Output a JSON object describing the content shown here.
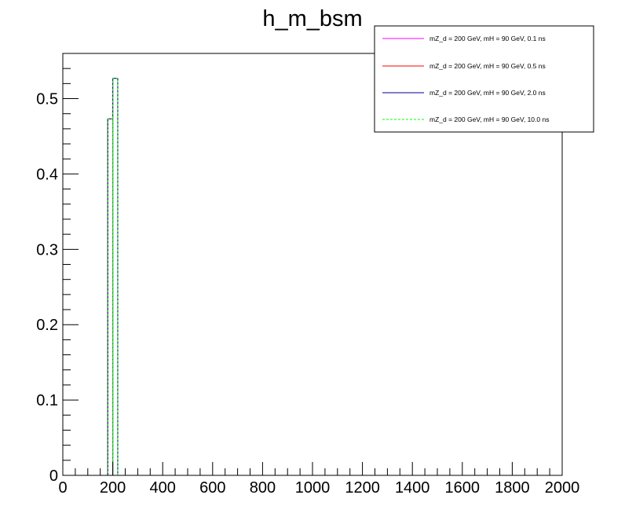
{
  "chart_data": {
    "type": "histogram",
    "title": "h_m_bsm",
    "xlabel": "",
    "ylabel": "",
    "xlim": [
      0,
      2000
    ],
    "ylim": [
      0,
      0.56
    ],
    "x_ticks": [
      0,
      200,
      400,
      600,
      800,
      1000,
      1200,
      1400,
      1600,
      1800,
      2000
    ],
    "y_ticks": [
      0,
      0.1,
      0.2,
      0.3,
      0.4,
      0.5
    ],
    "x_tick_labels": [
      "0",
      "200",
      "400",
      "600",
      "800",
      "1000",
      "1200",
      "1400",
      "1600",
      "1800",
      "2000"
    ],
    "y_tick_labels": [
      "0",
      "0.1",
      "0.2",
      "0.3",
      "0.4",
      "0.5"
    ],
    "bin_width": 20,
    "legend_position": "top-right",
    "grid": false,
    "series": [
      {
        "name": "mZ_d = 200 GeV, mH = 90 GeV, 0.1 ns",
        "color": "#ff00ff",
        "style": "solid",
        "bins": [
          {
            "x_low": 180,
            "x_high": 200,
            "value": 0.473
          },
          {
            "x_low": 200,
            "x_high": 220,
            "value": 0.527
          }
        ]
      },
      {
        "name": "mZ_d = 200 GeV, mH = 90 GeV, 0.5 ns",
        "color": "#ff0000",
        "style": "solid",
        "bins": [
          {
            "x_low": 180,
            "x_high": 200,
            "value": 0.473
          },
          {
            "x_low": 200,
            "x_high": 220,
            "value": 0.527
          }
        ]
      },
      {
        "name": "mZ_d = 200 GeV, mH = 90 GeV, 2.0 ns",
        "color": "#000099",
        "style": "solid",
        "bins": [
          {
            "x_low": 180,
            "x_high": 200,
            "value": 0.473
          },
          {
            "x_low": 200,
            "x_high": 220,
            "value": 0.527
          }
        ]
      },
      {
        "name": "mZ_d = 200 GeV, mH = 90 GeV, 10.0 ns",
        "color": "#00ff00",
        "style": "dashed",
        "bins": [
          {
            "x_low": 180,
            "x_high": 200,
            "value": 0.473
          },
          {
            "x_low": 200,
            "x_high": 220,
            "value": 0.527
          }
        ]
      }
    ]
  }
}
